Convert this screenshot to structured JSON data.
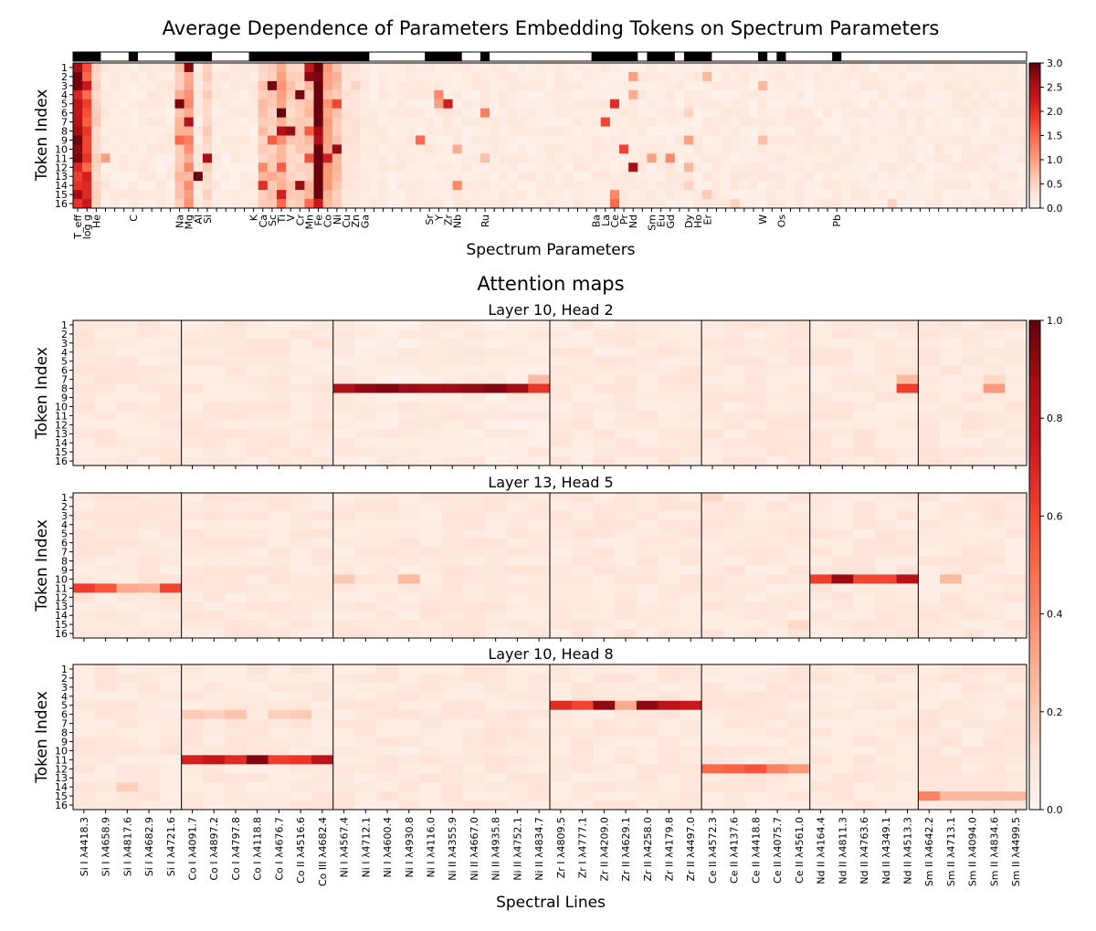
{
  "chart_data": [
    {
      "type": "heatmap",
      "title": "Average Dependence of Parameters Embedding Tokens on Spectrum Parameters",
      "xlabel": "Spectrum Parameters",
      "ylabel": "Token Index",
      "y_categories": [
        "1",
        "2",
        "3",
        "4",
        "5",
        "6",
        "7",
        "8",
        "9",
        "10",
        "11",
        "12",
        "13",
        "14",
        "15",
        "16"
      ],
      "n_columns": 103,
      "x_tick_labels": [
        {
          "col": 0,
          "label": "T_eff"
        },
        {
          "col": 1,
          "label": "log g"
        },
        {
          "col": 2,
          "label": "He"
        },
        {
          "col": 6,
          "label": "C"
        },
        {
          "col": 11,
          "label": "Na"
        },
        {
          "col": 12,
          "label": "Mg"
        },
        {
          "col": 13,
          "label": "Al"
        },
        {
          "col": 14,
          "label": "Si"
        },
        {
          "col": 19,
          "label": "K"
        },
        {
          "col": 20,
          "label": "Ca"
        },
        {
          "col": 21,
          "label": "Sc"
        },
        {
          "col": 22,
          "label": "Ti"
        },
        {
          "col": 23,
          "label": "V"
        },
        {
          "col": 24,
          "label": "Cr"
        },
        {
          "col": 25,
          "label": "Mn"
        },
        {
          "col": 26,
          "label": "Fe"
        },
        {
          "col": 27,
          "label": "Co"
        },
        {
          "col": 28,
          "label": "Ni"
        },
        {
          "col": 29,
          "label": "Cu"
        },
        {
          "col": 30,
          "label": "Zn"
        },
        {
          "col": 31,
          "label": "Ga"
        },
        {
          "col": 38,
          "label": "Sr"
        },
        {
          "col": 39,
          "label": "Y"
        },
        {
          "col": 40,
          "label": "Zr"
        },
        {
          "col": 41,
          "label": "Nb"
        },
        {
          "col": 44,
          "label": "Ru"
        },
        {
          "col": 56,
          "label": "Ba"
        },
        {
          "col": 57,
          "label": "La"
        },
        {
          "col": 58,
          "label": "Ce"
        },
        {
          "col": 59,
          "label": "Pr"
        },
        {
          "col": 60,
          "label": "Nd"
        },
        {
          "col": 62,
          "label": "Sm"
        },
        {
          "col": 63,
          "label": "Eu"
        },
        {
          "col": 64,
          "label": "Gd"
        },
        {
          "col": 66,
          "label": "Dy"
        },
        {
          "col": 67,
          "label": "Ho"
        },
        {
          "col": 68,
          "label": "Er"
        },
        {
          "col": 74,
          "label": "W"
        },
        {
          "col": 76,
          "label": "Os"
        },
        {
          "col": 82,
          "label": "Pb"
        }
      ],
      "group_bar_black_ranges": [
        [
          0,
          2
        ],
        [
          6,
          6
        ],
        [
          11,
          14
        ],
        [
          19,
          31
        ],
        [
          38,
          41
        ],
        [
          44,
          44
        ],
        [
          56,
          60
        ],
        [
          62,
          64
        ],
        [
          66,
          68
        ],
        [
          74,
          74
        ],
        [
          76,
          76
        ],
        [
          82,
          82
        ]
      ],
      "colorbar": {
        "min": 0.0,
        "max": 3.0,
        "ticks": [
          "0.0",
          "0.5",
          "1.0",
          "1.5",
          "2.0",
          "2.5",
          "3.0"
        ]
      },
      "baseline_columns": {
        "0": 2.4,
        "1": 1.9,
        "2": 0.5,
        "11": 0.7,
        "12": 1.0,
        "14": 0.5,
        "20": 0.6,
        "21": 0.6,
        "22": 1.0,
        "23": 0.5,
        "24": 0.5,
        "25": 0.7,
        "26": 2.9,
        "27": 0.9,
        "28": 0.7,
        "29": 0.3,
        "30": 0.3,
        "31": 0.2
      },
      "highlights": [
        {
          "row": 1,
          "col": 12,
          "value": 2.8
        },
        {
          "row": 1,
          "col": 22,
          "value": 0.9
        },
        {
          "row": 1,
          "col": 25,
          "value": 2.3
        },
        {
          "row": 1,
          "col": 26,
          "value": 3.0
        },
        {
          "row": 2,
          "col": 25,
          "value": 2.8
        },
        {
          "row": 2,
          "col": 60,
          "value": 1.0
        },
        {
          "row": 2,
          "col": 68,
          "value": 0.8
        },
        {
          "row": 3,
          "col": 21,
          "value": 2.9
        },
        {
          "row": 3,
          "col": 22,
          "value": 1.1
        },
        {
          "row": 3,
          "col": 23,
          "value": 0.7
        },
        {
          "row": 3,
          "col": 30,
          "value": 0.5
        },
        {
          "row": 3,
          "col": 74,
          "value": 0.8
        },
        {
          "row": 4,
          "col": 24,
          "value": 2.9
        },
        {
          "row": 4,
          "col": 39,
          "value": 1.2
        },
        {
          "row": 4,
          "col": 60,
          "value": 0.9
        },
        {
          "row": 5,
          "col": 11,
          "value": 2.9
        },
        {
          "row": 5,
          "col": 12,
          "value": 1.2
        },
        {
          "row": 5,
          "col": 28,
          "value": 1.8
        },
        {
          "row": 5,
          "col": 39,
          "value": 1.0
        },
        {
          "row": 5,
          "col": 40,
          "value": 2.2
        },
        {
          "row": 5,
          "col": 58,
          "value": 2.0
        },
        {
          "row": 6,
          "col": 22,
          "value": 3.0
        },
        {
          "row": 6,
          "col": 26,
          "value": 3.0
        },
        {
          "row": 6,
          "col": 44,
          "value": 1.3
        },
        {
          "row": 6,
          "col": 66,
          "value": 0.5
        },
        {
          "row": 7,
          "col": 12,
          "value": 2.5
        },
        {
          "row": 7,
          "col": 57,
          "value": 1.8
        },
        {
          "row": 8,
          "col": 22,
          "value": 2.5
        },
        {
          "row": 8,
          "col": 23,
          "value": 2.7
        },
        {
          "row": 8,
          "col": 25,
          "value": 1.6
        },
        {
          "row": 9,
          "col": 11,
          "value": 1.5
        },
        {
          "row": 9,
          "col": 12,
          "value": 1.3
        },
        {
          "row": 9,
          "col": 21,
          "value": 1.6
        },
        {
          "row": 9,
          "col": 37,
          "value": 1.5
        },
        {
          "row": 9,
          "col": 66,
          "value": 1.0
        },
        {
          "row": 9,
          "col": 74,
          "value": 0.7
        },
        {
          "row": 10,
          "col": 28,
          "value": 2.7
        },
        {
          "row": 10,
          "col": 41,
          "value": 0.9
        },
        {
          "row": 10,
          "col": 59,
          "value": 1.8
        },
        {
          "row": 11,
          "col": 3,
          "value": 1.0
        },
        {
          "row": 11,
          "col": 14,
          "value": 2.6
        },
        {
          "row": 11,
          "col": 25,
          "value": 1.7
        },
        {
          "row": 11,
          "col": 27,
          "value": 2.2
        },
        {
          "row": 11,
          "col": 44,
          "value": 0.7
        },
        {
          "row": 11,
          "col": 62,
          "value": 1.0
        },
        {
          "row": 11,
          "col": 64,
          "value": 1.2
        },
        {
          "row": 12,
          "col": 20,
          "value": 1.2
        },
        {
          "row": 12,
          "col": 22,
          "value": 1.6
        },
        {
          "row": 12,
          "col": 60,
          "value": 2.6
        },
        {
          "row": 12,
          "col": 66,
          "value": 0.8
        },
        {
          "row": 13,
          "col": 13,
          "value": 3.0
        },
        {
          "row": 13,
          "col": 20,
          "value": 0.8
        },
        {
          "row": 13,
          "col": 21,
          "value": 0.9
        },
        {
          "row": 14,
          "col": 20,
          "value": 2.0
        },
        {
          "row": 14,
          "col": 24,
          "value": 2.7
        },
        {
          "row": 14,
          "col": 41,
          "value": 1.2
        },
        {
          "row": 14,
          "col": 66,
          "value": 0.5
        },
        {
          "row": 15,
          "col": 22,
          "value": 2.2
        },
        {
          "row": 15,
          "col": 58,
          "value": 1.2
        },
        {
          "row": 15,
          "col": 68,
          "value": 0.6
        },
        {
          "row": 16,
          "col": 22,
          "value": 1.5
        },
        {
          "row": 16,
          "col": 25,
          "value": 1.5
        },
        {
          "row": 16,
          "col": 58,
          "value": 1.5
        },
        {
          "row": 16,
          "col": 71,
          "value": 0.5
        },
        {
          "row": 16,
          "col": 88,
          "value": 0.5
        }
      ]
    },
    {
      "type": "heatmap",
      "suptitle": "Attention maps",
      "xlabel": "Spectral Lines",
      "ylabel": "Token Index",
      "y_categories": [
        "1",
        "2",
        "3",
        "4",
        "5",
        "6",
        "7",
        "8",
        "9",
        "10",
        "11",
        "12",
        "13",
        "14",
        "15",
        "16"
      ],
      "x_categories": [
        "Si I λ4418.3",
        "Si I λ4658.9",
        "Si I λ4817.6",
        "Si I λ4682.9",
        "Si I λ4721.6",
        "Co I λ4091.7",
        "Co I λ4897.2",
        "Co I λ4797.8",
        "Co I λ4118.8",
        "Co I λ4676.7",
        "Co II λ4516.6",
        "Co III λ4682.4",
        "Ni I λ4567.4",
        "Ni I λ4712.1",
        "Ni I λ4600.4",
        "Ni I λ4930.8",
        "Ni I λ4116.0",
        "Ni II λ4355.9",
        "Ni II λ4667.0",
        "Ni II λ4935.8",
        "Ni II λ4752.1",
        "Ni II λ4834.7",
        "Zr I λ4809.5",
        "Zr I λ4777.1",
        "Zr II λ4209.0",
        "Zr II λ4629.1",
        "Zr II λ4258.0",
        "Zr II λ4179.8",
        "Zr II λ4497.0",
        "Ce II λ4572.3",
        "Ce II λ4137.6",
        "Ce II λ4418.8",
        "Ce II λ4075.7",
        "Ce II λ4561.0",
        "Nd II λ4164.4",
        "Nd II λ4811.3",
        "Nd II λ4763.6",
        "Nd II λ4349.1",
        "Nd II λ4513.3",
        "Sm II λ4642.2",
        "Sm II λ4713.1",
        "Sm II λ4094.0",
        "Sm II λ4834.6",
        "Sm II λ4499.5"
      ],
      "group_boundaries_after_col": [
        4,
        11,
        21,
        28,
        33,
        38
      ],
      "colorbar": {
        "min": 0.0,
        "max": 1.0,
        "ticks": [
          "0.0",
          "0.2",
          "0.4",
          "0.6",
          "0.8",
          "1.0"
        ]
      },
      "panels": [
        {
          "title": "Layer 10, Head 2",
          "highlights": [
            {
              "row": 8,
              "cols": [
                12,
                13,
                14,
                15,
                16,
                17,
                18,
                19,
                20
              ],
              "values": [
                0.85,
                0.92,
                0.95,
                0.9,
                0.88,
                0.9,
                0.92,
                0.95,
                0.88
              ]
            },
            {
              "row": 8,
              "col": 21,
              "value": 0.65
            },
            {
              "row": 7,
              "col": 21,
              "value": 0.25
            },
            {
              "row": 8,
              "col": 38,
              "value": 0.62
            },
            {
              "row": 7,
              "col": 38,
              "value": 0.25
            },
            {
              "row": 8,
              "col": 42,
              "value": 0.35
            },
            {
              "row": 7,
              "col": 42,
              "value": 0.15
            }
          ]
        },
        {
          "title": "Layer 13, Head 5",
          "highlights": [
            {
              "row": 11,
              "cols": [
                0,
                1,
                2,
                3,
                4
              ],
              "values": [
                0.62,
                0.55,
                0.3,
                0.28,
                0.6
              ]
            },
            {
              "row": 10,
              "cols": [
                34,
                35,
                36,
                37,
                38
              ],
              "values": [
                0.62,
                0.9,
                0.6,
                0.6,
                0.82
              ]
            },
            {
              "row": 10,
              "col": 40,
              "value": 0.25
            },
            {
              "row": 10,
              "col": 12,
              "value": 0.2
            },
            {
              "row": 10,
              "col": 15,
              "value": 0.25
            },
            {
              "row": 1,
              "col": 29,
              "value": 0.15
            },
            {
              "row": 15,
              "col": 33,
              "value": 0.15
            }
          ]
        },
        {
          "title": "Layer 10, Head 8",
          "highlights": [
            {
              "row": 5,
              "cols": [
                22,
                23,
                24,
                25,
                26,
                27,
                28
              ],
              "values": [
                0.68,
                0.6,
                0.92,
                0.3,
                0.92,
                0.8,
                0.75
              ]
            },
            {
              "row": 11,
              "cols": [
                5,
                6,
                7,
                8,
                9,
                10,
                11
              ],
              "values": [
                0.72,
                0.78,
                0.68,
                0.95,
                0.62,
                0.65,
                0.8
              ]
            },
            {
              "row": 12,
              "cols": [
                29,
                30,
                31,
                32,
                33
              ],
              "values": [
                0.5,
                0.52,
                0.56,
                0.42,
                0.35
              ]
            },
            {
              "row": 15,
              "cols": [
                39,
                40,
                41,
                42,
                43
              ],
              "values": [
                0.42,
                0.25,
                0.25,
                0.25,
                0.25
              ]
            },
            {
              "row": 6,
              "cols": [
                5,
                6,
                7,
                9,
                10
              ],
              "values": [
                0.2,
                0.18,
                0.22,
                0.18,
                0.2
              ]
            },
            {
              "row": 14,
              "col": 2,
              "value": 0.18
            },
            {
              "row": 11,
              "col": 25,
              "value": 0.1
            }
          ]
        }
      ]
    }
  ]
}
